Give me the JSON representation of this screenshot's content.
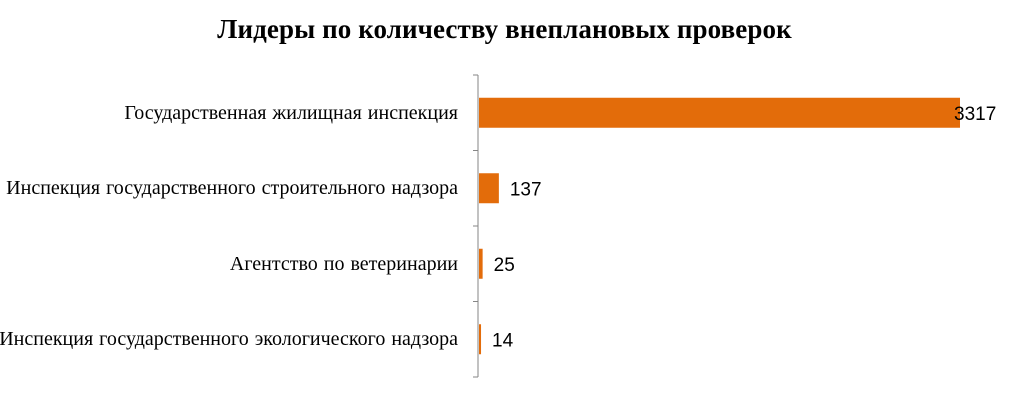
{
  "chart_data": {
    "type": "bar",
    "orientation": "horizontal",
    "title": "Лидеры по количеству внеплановых проверок",
    "categories": [
      "Государственная жилищная инспекция",
      "Инспекция государственного строительного надзора",
      "Агентство по ветеринарии",
      "Инспекция государственного экологического надзора"
    ],
    "values": [
      3317,
      137,
      25,
      14
    ],
    "value_labels": [
      "3317",
      "137",
      "25",
      "14"
    ],
    "xlim": [
      0,
      3317
    ],
    "grid": false,
    "legend": "none",
    "colors": {
      "bar": "#E36C0A",
      "axis": "#868686",
      "text": "#000000"
    }
  }
}
